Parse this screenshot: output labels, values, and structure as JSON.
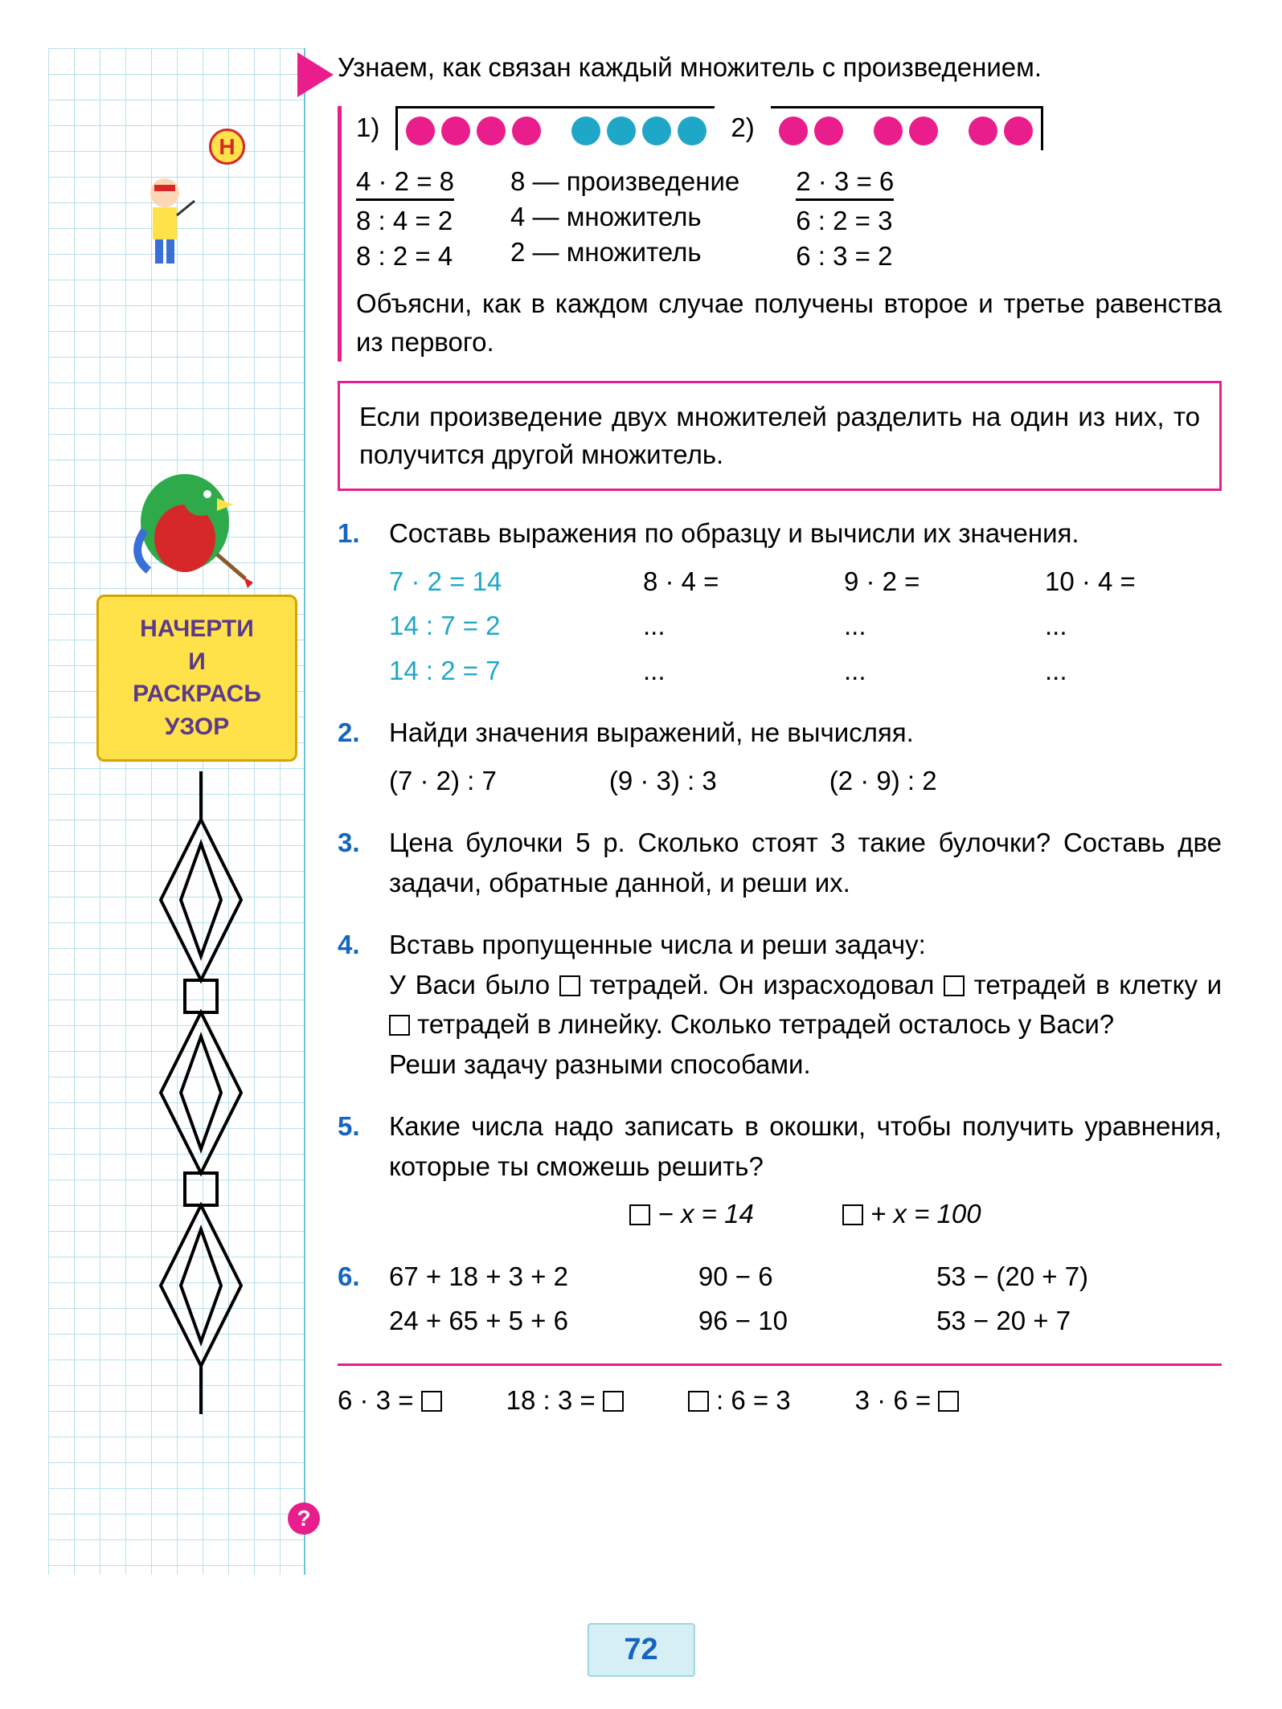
{
  "sidebar": {
    "badge_letter": "Н",
    "sign_line1": "НАЧЕРТИ",
    "sign_line2": "И",
    "sign_line3": "РАСКРАСЬ",
    "sign_line4": "УЗОР"
  },
  "intro": "Узнаем, как связан каждый множитель с произ­ведением.",
  "demo": {
    "label1": "1)",
    "label2": "2)",
    "group1": {
      "colors": [
        "#e91e8c",
        "#e91e8c",
        "#e91e8c",
        "#e91e8c",
        "#1fa7c7",
        "#1fa7c7",
        "#1fa7c7",
        "#1fa7c7"
      ]
    },
    "group2": {
      "colors": [
        "#e91e8c",
        "#e91e8c",
        "#e91e8c",
        "#e91e8c",
        "#e91e8c",
        "#e91e8c"
      ]
    },
    "left": {
      "eq1": "4 · 2 = 8",
      "eq2": "8 : 4 = 2",
      "eq3": "8 : 2 = 4"
    },
    "mid": {
      "l1": "8 — произведение",
      "l2": "4 — множитель",
      "l3": "2 — множитель"
    },
    "right": {
      "eq1": "2 · 3 = 6",
      "eq2": "6 : 2 = 3",
      "eq3": "6 : 3 = 2"
    },
    "explain": "Объясни, как в каждом случае получены второе и третье равенства из первого."
  },
  "rule": "Если произведение двух множителей разделить на один из них, то получится другой множитель.",
  "tasks": {
    "t1": {
      "num": "1.",
      "text": "Составь выражения по образцу и вычисли их значения.",
      "col0": {
        "a": "7 · 2 = 14",
        "b": "14 : 7 = 2",
        "c": "14 : 2 = 7"
      },
      "col1": {
        "a": "8 · 4 =",
        "b": "...",
        "c": "..."
      },
      "col2": {
        "a": "9 · 2 =",
        "b": "...",
        "c": "..."
      },
      "col3": {
        "a": "10 · 4 =",
        "b": "...",
        "c": "..."
      }
    },
    "t2": {
      "num": "2.",
      "text": "Найди значения выражений, не вычисляя.",
      "e1": "(7 · 2) : 7",
      "e2": "(9 · 3) : 3",
      "e3": "(2 · 9) : 2"
    },
    "t3": {
      "num": "3.",
      "text": "Цена булочки 5 р. Сколько стоят 3 такие бу­лочки? Составь две задачи, обратные данной, и реши их."
    },
    "t4": {
      "num": "4.",
      "text_a": "Вставь пропущенные числа и реши задачу:",
      "text_b1": "У Васи было ",
      "text_b2": " тетрадей. Он израсходовал ",
      "text_b3": " тетрадей в клетку и ",
      "text_b4": " тетрадей в линейку. Сколько тетрадей осталось у Васи?",
      "text_c": "Реши задачу разными способами."
    },
    "t5": {
      "num": "5.",
      "text": "Какие числа надо записать в окошки, чтобы по­лучить уравнения, которые ты сможешь решить?",
      "eq1_a": " − x = 14",
      "eq2_a": " + x = 100"
    },
    "t6": {
      "num": "6.",
      "c1a": "67 + 18 + 3 + 2",
      "c1b": "24 + 65 + 5 + 6",
      "c2a": "90 − 6",
      "c2b": "96 − 10",
      "c3a": "53 − (20 + 7)",
      "c3b": "53 − 20 + 7"
    },
    "footer": {
      "e1": "6 · 3 = ",
      "e2": "18 : 3 = ",
      "e3": " : 6 = 3",
      "e4": "3 · 6 = "
    }
  },
  "page_number": "72",
  "colors": {
    "pink": "#e91e8c",
    "blue": "#1565c0",
    "cyan": "#1fa7c7",
    "grid": "#b8e0ec",
    "sign_bg": "#ffe14a",
    "sign_text": "#5a3a8a"
  }
}
